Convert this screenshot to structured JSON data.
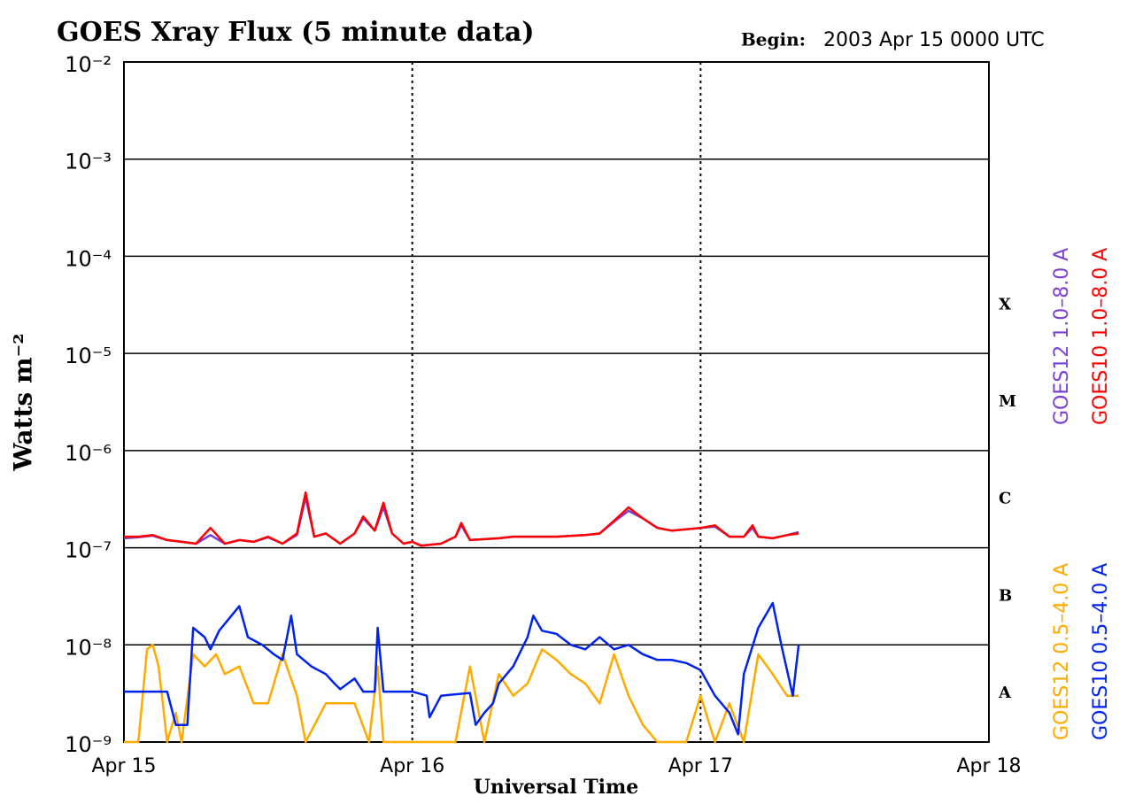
{
  "chart_data": {
    "type": "line",
    "title": "GOES Xray Flux (5 minute data)",
    "begin_label": "Begin:",
    "begin_value": "2003 Apr 15 0000 UTC",
    "y_label": "Watts m⁻²",
    "x_label": "Universal Time",
    "log_y": true,
    "grid": true,
    "flare_classes": [
      "X",
      "M",
      "C",
      "B",
      "A"
    ],
    "xlim": [
      0,
      3
    ],
    "xticks": [
      {
        "value": 0,
        "label": "Apr 15"
      },
      {
        "value": 1,
        "label": "Apr 16"
      },
      {
        "value": 2,
        "label": "Apr 17"
      },
      {
        "value": 3,
        "label": "Apr 18"
      }
    ],
    "ylim": [
      1e-09,
      0.01
    ],
    "yticks": [
      {
        "value": 1e-09,
        "label": "10⁻⁹"
      },
      {
        "value": 1e-08,
        "label": "10⁻⁸"
      },
      {
        "value": 1e-07,
        "label": "10⁻⁷"
      },
      {
        "value": 1e-06,
        "label": "10⁻⁶"
      },
      {
        "value": 1e-05,
        "label": "10⁻⁵"
      },
      {
        "value": 0.0001,
        "label": "10⁻⁴"
      },
      {
        "value": 0.001,
        "label": "10⁻³"
      },
      {
        "value": 0.01,
        "label": "10⁻²"
      }
    ],
    "series": [
      {
        "name": "GOES12 1.0–8.0 A",
        "color": "#7a3fd6",
        "x": [
          0,
          0.05,
          0.1,
          0.15,
          0.2,
          0.25,
          0.3,
          0.35,
          0.4,
          0.45,
          0.5,
          0.55,
          0.6,
          0.63,
          0.66,
          0.7,
          0.75,
          0.8,
          0.83,
          0.87,
          0.9,
          0.93,
          0.97,
          1.0,
          1.03,
          1.1,
          1.15,
          1.17,
          1.2,
          1.3,
          1.35,
          1.4,
          1.5,
          1.6,
          1.65,
          1.7,
          1.75,
          1.8,
          1.85,
          1.9,
          2.0,
          2.05,
          2.1,
          2.15,
          2.18,
          2.2,
          2.25,
          2.3,
          2.34
        ],
        "values": [
          1.25e-07,
          1.28e-07,
          1.33e-07,
          1.2e-07,
          1.15e-07,
          1.1e-07,
          1.35e-07,
          1.1e-07,
          1.2e-07,
          1.15e-07,
          1.28e-07,
          1.1e-07,
          1.35e-07,
          3.3e-07,
          1.3e-07,
          1.4e-07,
          1.1e-07,
          1.4e-07,
          2e-07,
          1.5e-07,
          2.6e-07,
          1.4e-07,
          1.1e-07,
          1.15e-07,
          1.05e-07,
          1.1e-07,
          1.3e-07,
          1.7e-07,
          1.2e-07,
          1.25e-07,
          1.3e-07,
          1.3e-07,
          1.3e-07,
          1.35e-07,
          1.4e-07,
          1.85e-07,
          2.4e-07,
          2e-07,
          1.6e-07,
          1.5e-07,
          1.6e-07,
          1.65e-07,
          1.3e-07,
          1.3e-07,
          1.6e-07,
          1.3e-07,
          1.25e-07,
          1.35e-07,
          1.45e-07
        ]
      },
      {
        "name": "GOES10 1.0–8.0 A",
        "color": "#ff0000",
        "x": [
          0,
          0.05,
          0.1,
          0.15,
          0.2,
          0.25,
          0.3,
          0.35,
          0.4,
          0.45,
          0.5,
          0.55,
          0.6,
          0.63,
          0.66,
          0.7,
          0.75,
          0.8,
          0.83,
          0.87,
          0.9,
          0.93,
          0.97,
          1.0,
          1.03,
          1.1,
          1.15,
          1.17,
          1.2,
          1.3,
          1.35,
          1.4,
          1.5,
          1.6,
          1.65,
          1.7,
          1.75,
          1.8,
          1.85,
          1.9,
          2.0,
          2.05,
          2.1,
          2.15,
          2.18,
          2.2,
          2.25,
          2.3,
          2.34
        ],
        "values": [
          1.3e-07,
          1.3e-07,
          1.35e-07,
          1.2e-07,
          1.15e-07,
          1.1e-07,
          1.6e-07,
          1.1e-07,
          1.2e-07,
          1.15e-07,
          1.3e-07,
          1.1e-07,
          1.4e-07,
          3.7e-07,
          1.3e-07,
          1.4e-07,
          1.1e-07,
          1.4e-07,
          2.1e-07,
          1.5e-07,
          2.9e-07,
          1.4e-07,
          1.1e-07,
          1.15e-07,
          1.05e-07,
          1.1e-07,
          1.3e-07,
          1.8e-07,
          1.2e-07,
          1.25e-07,
          1.3e-07,
          1.3e-07,
          1.3e-07,
          1.35e-07,
          1.4e-07,
          1.9e-07,
          2.6e-07,
          2e-07,
          1.6e-07,
          1.5e-07,
          1.6e-07,
          1.7e-07,
          1.3e-07,
          1.3e-07,
          1.7e-07,
          1.3e-07,
          1.25e-07,
          1.35e-07,
          1.4e-07
        ]
      },
      {
        "name": "GOES12 0.5–4.0 A",
        "color": "#ffaa00",
        "x": [
          0,
          0.05,
          0.08,
          0.1,
          0.12,
          0.15,
          0.18,
          0.2,
          0.24,
          0.28,
          0.32,
          0.35,
          0.4,
          0.45,
          0.5,
          0.55,
          0.6,
          0.63,
          0.7,
          0.75,
          0.8,
          0.85,
          0.88,
          0.9,
          1.0,
          1.05,
          1.1,
          1.15,
          1.2,
          1.25,
          1.3,
          1.35,
          1.4,
          1.45,
          1.5,
          1.55,
          1.6,
          1.65,
          1.7,
          1.75,
          1.8,
          1.85,
          1.9,
          1.95,
          2.0,
          2.05,
          2.1,
          2.15,
          2.2,
          2.25,
          2.3,
          2.34
        ],
        "values": [
          1e-09,
          1e-09,
          9e-09,
          1e-08,
          6e-09,
          1e-09,
          2e-09,
          1e-09,
          8e-09,
          6e-09,
          8e-09,
          5e-09,
          6e-09,
          2.5e-09,
          2.5e-09,
          8e-09,
          3e-09,
          1e-09,
          2.5e-09,
          2.5e-09,
          2.5e-09,
          1e-09,
          6e-09,
          1e-09,
          1e-09,
          1e-09,
          1e-09,
          1e-09,
          6e-09,
          1e-09,
          5e-09,
          3e-09,
          4e-09,
          9e-09,
          7e-09,
          5e-09,
          4e-09,
          2.5e-09,
          8e-09,
          3e-09,
          1.5e-09,
          1e-09,
          1e-09,
          1e-09,
          3e-09,
          1e-09,
          2.5e-09,
          1e-09,
          8e-09,
          5e-09,
          3e-09,
          3e-09
        ]
      },
      {
        "name": "GOES10 0.5–4.0 A",
        "color": "#0022ee",
        "x": [
          0,
          0.15,
          0.18,
          0.22,
          0.24,
          0.28,
          0.3,
          0.33,
          0.4,
          0.43,
          0.48,
          0.52,
          0.55,
          0.58,
          0.6,
          0.65,
          0.7,
          0.73,
          0.75,
          0.8,
          0.83,
          0.87,
          0.88,
          0.9,
          0.95,
          1.0,
          1.05,
          1.06,
          1.1,
          1.2,
          1.22,
          1.25,
          1.28,
          1.3,
          1.35,
          1.4,
          1.42,
          1.45,
          1.5,
          1.55,
          1.6,
          1.65,
          1.7,
          1.75,
          1.8,
          1.85,
          1.9,
          1.95,
          2.0,
          2.05,
          2.1,
          2.13,
          2.15,
          2.2,
          2.25,
          2.28,
          2.32,
          2.34
        ],
        "values": [
          3.3e-09,
          3.3e-09,
          1.5e-09,
          1.5e-09,
          1.5e-08,
          1.2e-08,
          9e-09,
          1.4e-08,
          2.5e-08,
          1.2e-08,
          1e-08,
          8e-09,
          7e-09,
          2e-08,
          8e-09,
          6e-09,
          5e-09,
          4e-09,
          3.5e-09,
          4.5e-09,
          3.3e-09,
          3.3e-09,
          1.5e-08,
          3.3e-09,
          3.3e-09,
          3.3e-09,
          3e-09,
          1.8e-09,
          3e-09,
          3.2e-09,
          1.5e-09,
          2e-09,
          2.5e-09,
          4e-09,
          6e-09,
          1.2e-08,
          2e-08,
          1.4e-08,
          1.3e-08,
          1e-08,
          9e-09,
          1.2e-08,
          9e-09,
          1e-08,
          8e-09,
          7e-09,
          7e-09,
          6.5e-09,
          5.5e-09,
          3e-09,
          2e-09,
          1.2e-09,
          5e-09,
          1.5e-08,
          2.7e-08,
          1e-08,
          3e-09,
          1e-08
        ]
      }
    ]
  }
}
